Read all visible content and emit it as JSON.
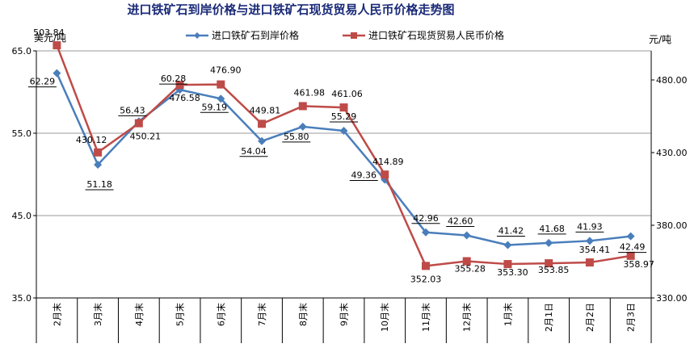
{
  "chart_data": {
    "type": "line",
    "title": "进口铁矿石到岸价格与进口铁矿石现货贸易人民币价格走势图",
    "left_unit": "美元/吨",
    "right_unit": "元/吨",
    "categories": [
      "2月末",
      "3月末",
      "4月末",
      "5月末",
      "6月末",
      "7月末",
      "8月末",
      "9月末",
      "10月末",
      "11月末",
      "12月末",
      "1月末",
      "2月1日",
      "2月2日",
      "2月3日"
    ],
    "left_axis": {
      "min": 35,
      "max": 65,
      "ticks": [
        "35.0",
        "45.0",
        "55.0",
        "65.0"
      ]
    },
    "right_axis": {
      "min": 330,
      "max": 500,
      "ticks": [
        "330.00",
        "380.00",
        "430.00",
        "480.00"
      ]
    },
    "grid": true,
    "legend_position": "top",
    "series": [
      {
        "name": "进口铁矿石到岸价格",
        "axis": "left",
        "color": "#4a7ebb",
        "marker": "diamond",
        "values": [
          62.29,
          51.18,
          56.43,
          60.28,
          59.19,
          54.04,
          55.8,
          55.29,
          49.36,
          42.96,
          42.6,
          41.42,
          41.68,
          41.93,
          42.49
        ],
        "labels": [
          "62.29",
          "51.18",
          "56.43",
          "60.28",
          "59.19",
          "54.04",
          "55.80",
          "55.29",
          "49.36",
          "42.96",
          "42.60",
          "41.42",
          "41.68",
          "41.93",
          "42.49"
        ]
      },
      {
        "name": "进口铁矿石现货贸易人民币价格",
        "axis": "right",
        "color": "#be4b48",
        "marker": "square",
        "values": [
          503.84,
          430.12,
          450.21,
          476.58,
          476.9,
          449.81,
          461.98,
          461.06,
          414.89,
          352.03,
          355.28,
          353.3,
          353.85,
          354.41,
          358.97
        ],
        "labels": [
          "503.84",
          "430.12",
          "450.21",
          "476.58",
          "476.90",
          "449.81",
          "461.98",
          "461.06",
          "414.89",
          "352.03",
          "355.28",
          "353.30",
          "353.85",
          "354.41",
          "358.97"
        ]
      }
    ]
  }
}
